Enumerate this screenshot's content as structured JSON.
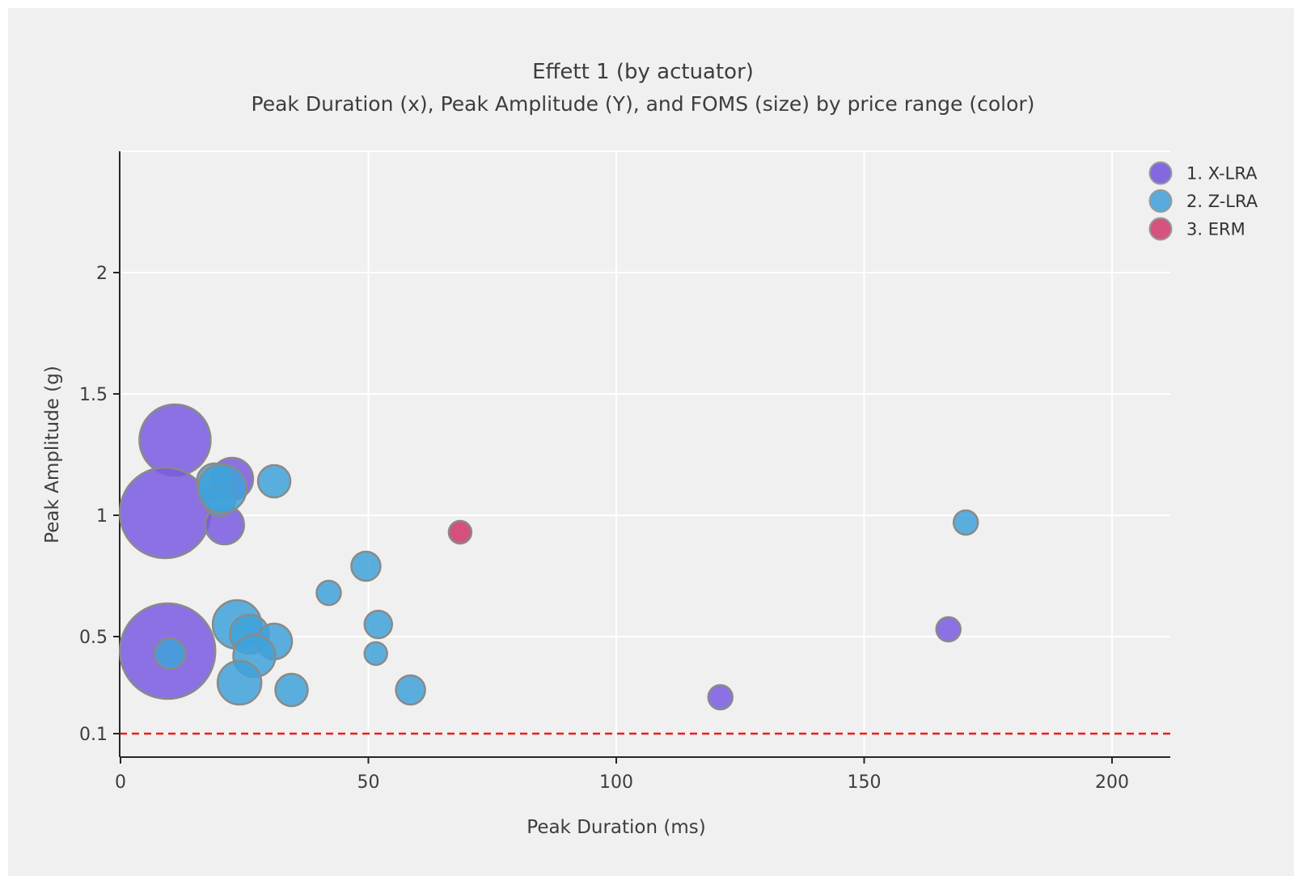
{
  "header": {
    "title": "Effett 1 (by actuator)",
    "subtitle": "Peak Duration (x), Peak Amplitude (Y), and FOMS (size) by price range (color)"
  },
  "axes": {
    "x": {
      "label": "Peak Duration (ms)",
      "tick_labels": [
        "0",
        "50",
        "100",
        "150",
        "200"
      ]
    },
    "y": {
      "label": "Peak Amplitude (g)",
      "tick_labels": [
        "0.1",
        "0.5",
        "1",
        "1.5",
        "2"
      ]
    }
  },
  "legend": [
    {
      "label": "1. X-LRA",
      "swatch_color": "#8468e0"
    },
    {
      "label": "2. Z-LRA",
      "swatch_color": "#58abdc"
    },
    {
      "label": "3. ERM",
      "swatch_color": "#d5537f"
    }
  ],
  "colors": {
    "background": "#f0f0f0",
    "frame": "#ffffff",
    "gridline": "#ffffff",
    "axis": "#262626",
    "text": "#3d3d3d",
    "bubble_stroke": "#8a8a88",
    "reference_line": "#ed1c1c",
    "series": {
      "X-LRA": "#795be1",
      "Z-LRA": "#40a2da",
      "ERM": "#cf356a"
    }
  },
  "chart_data": {
    "type": "bubble",
    "title": "Effett 1 (by actuator)",
    "xlabel": "Peak Duration (ms)",
    "ylabel": "Peak Amplitude (g)",
    "xlim": [
      0,
      212
    ],
    "ylim": [
      0,
      2.49
    ],
    "x_ticks": [
      0,
      50,
      100,
      150,
      200
    ],
    "y_ticks": [
      0.1,
      0.5,
      1,
      1.5,
      2
    ],
    "x_gridlines": [
      50,
      100,
      150,
      200
    ],
    "y_gridlines": [
      0.5,
      1,
      1.5,
      2,
      2.5
    ],
    "reference_line_y": 0.1,
    "size_note": "r is bubble radius in px (FOMS maps to size; numeric FOMS values not shown in chart)",
    "series": [
      {
        "name": "1. X-LRA",
        "actuator": "X-LRA",
        "points": [
          {
            "x": 11,
            "y": 1.31,
            "r": 44
          },
          {
            "x": 9,
            "y": 1.01,
            "r": 56
          },
          {
            "x": 22.5,
            "y": 1.15,
            "r": 26
          },
          {
            "x": 21,
            "y": 0.96,
            "r": 24
          },
          {
            "x": 9.5,
            "y": 0.44,
            "r": 59
          },
          {
            "x": 121,
            "y": 0.25,
            "r": 15
          },
          {
            "x": 167,
            "y": 0.53,
            "r": 15
          }
        ]
      },
      {
        "name": "2. Z-LRA",
        "actuator": "Z-LRA",
        "points": [
          {
            "x": 19,
            "y": 1.14,
            "r": 22
          },
          {
            "x": 20,
            "y": 1.06,
            "r": 19
          },
          {
            "x": 20.5,
            "y": 1.11,
            "r": 30
          },
          {
            "x": 31,
            "y": 1.14,
            "r": 20
          },
          {
            "x": 10,
            "y": 0.43,
            "r": 19
          },
          {
            "x": 23.5,
            "y": 0.55,
            "r": 30
          },
          {
            "x": 26,
            "y": 0.51,
            "r": 24
          },
          {
            "x": 31,
            "y": 0.48,
            "r": 22
          },
          {
            "x": 27,
            "y": 0.42,
            "r": 26
          },
          {
            "x": 24,
            "y": 0.31,
            "r": 27
          },
          {
            "x": 34.5,
            "y": 0.28,
            "r": 20
          },
          {
            "x": 42,
            "y": 0.68,
            "r": 15
          },
          {
            "x": 49.5,
            "y": 0.79,
            "r": 18
          },
          {
            "x": 52,
            "y": 0.55,
            "r": 17
          },
          {
            "x": 51.5,
            "y": 0.43,
            "r": 14
          },
          {
            "x": 58.5,
            "y": 0.28,
            "r": 18
          },
          {
            "x": 170.5,
            "y": 0.97,
            "r": 15
          }
        ]
      },
      {
        "name": "3. ERM",
        "actuator": "ERM",
        "points": [
          {
            "x": 68.5,
            "y": 0.93,
            "r": 14
          }
        ]
      }
    ]
  }
}
